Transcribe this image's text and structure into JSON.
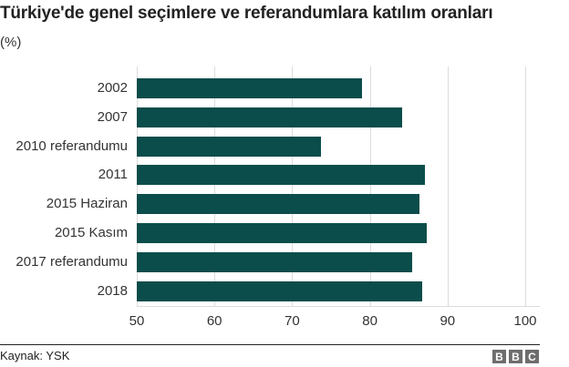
{
  "header": {
    "title": "Türkiye'de genel seçimlere ve referandumlara katılım oranları",
    "subtitle": "(%)"
  },
  "footer": {
    "source": "Kaynak: YSK",
    "logo_letters": [
      "B",
      "B",
      "C"
    ]
  },
  "colors": {
    "bar": "#0b4d4b",
    "grid": "#dcdcdc"
  },
  "chart_data": {
    "type": "bar",
    "orientation": "horizontal",
    "title": "Türkiye'de genel seçimlere ve referandumlara katılım oranları",
    "subtitle": "(%)",
    "categories": [
      "2002",
      "2007",
      "2010 referandumu",
      "2011",
      "2015 Haziran",
      "2015 Kasım",
      "2017 referandumu",
      "2018"
    ],
    "values": [
      79.0,
      84.2,
      73.7,
      87.1,
      86.4,
      87.3,
      85.4,
      86.7
    ],
    "xlabel": "",
    "ylabel": "",
    "xlim": [
      50,
      100
    ],
    "xticks": [
      "50",
      "60",
      "70",
      "80",
      "90",
      "100"
    ],
    "grid": true,
    "legend": null,
    "source": "Kaynak: YSK"
  }
}
